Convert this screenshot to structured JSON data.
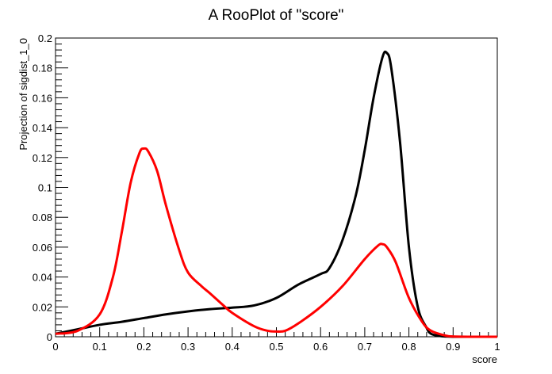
{
  "chart_data": {
    "type": "line",
    "title": "A RooPlot of \"score\"",
    "xlabel": "score",
    "ylabel": "Projection of sigdist_1_0",
    "xlim": [
      0,
      1
    ],
    "ylim": [
      0,
      0.2
    ],
    "grid": false,
    "x_ticks": [
      0,
      0.1,
      0.2,
      0.3,
      0.4,
      0.5,
      0.6,
      0.7,
      0.8,
      0.9,
      1
    ],
    "x_tick_labels": [
      "0",
      "0.1",
      "0.2",
      "0.3",
      "0.4",
      "0.5",
      "0.6",
      "0.7",
      "0.8",
      "0.9",
      "1"
    ],
    "y_ticks": [
      0,
      0.02,
      0.04,
      0.06,
      0.08,
      0.1,
      0.12,
      0.14,
      0.16,
      0.18,
      0.2
    ],
    "y_tick_labels": [
      "0",
      "0.02",
      "0.04",
      "0.06",
      "0.08",
      "0.1",
      "0.12",
      "0.14",
      "0.16",
      "0.18",
      "0.2"
    ],
    "series": [
      {
        "color": "#000000",
        "x": [
          0.0,
          0.05,
          0.1,
          0.15,
          0.2,
          0.25,
          0.3,
          0.35,
          0.4,
          0.45,
          0.5,
          0.55,
          0.6,
          0.62,
          0.65,
          0.68,
          0.7,
          0.72,
          0.74,
          0.75,
          0.76,
          0.78,
          0.8,
          0.82,
          0.84,
          0.85,
          0.87,
          0.9,
          0.95,
          1.0
        ],
        "y": [
          0.002,
          0.005,
          0.008,
          0.01,
          0.0125,
          0.015,
          0.017,
          0.0185,
          0.0195,
          0.021,
          0.026,
          0.035,
          0.042,
          0.046,
          0.065,
          0.095,
          0.125,
          0.16,
          0.187,
          0.19,
          0.18,
          0.13,
          0.06,
          0.02,
          0.006,
          0.002,
          0.0005,
          0.0,
          0.0,
          0.0
        ]
      },
      {
        "color": "#ff0000",
        "x": [
          0.0,
          0.05,
          0.1,
          0.13,
          0.15,
          0.17,
          0.19,
          0.2,
          0.21,
          0.23,
          0.25,
          0.28,
          0.3,
          0.33,
          0.35,
          0.38,
          0.4,
          0.45,
          0.48,
          0.5,
          0.52,
          0.55,
          0.6,
          0.65,
          0.7,
          0.73,
          0.74,
          0.75,
          0.77,
          0.8,
          0.83,
          0.85,
          0.88,
          0.9,
          0.95,
          1.0
        ],
        "y": [
          0.002,
          0.004,
          0.015,
          0.04,
          0.07,
          0.103,
          0.123,
          0.126,
          0.124,
          0.111,
          0.088,
          0.058,
          0.043,
          0.034,
          0.029,
          0.021,
          0.016,
          0.007,
          0.004,
          0.0035,
          0.004,
          0.009,
          0.02,
          0.034,
          0.052,
          0.061,
          0.062,
          0.06,
          0.05,
          0.026,
          0.01,
          0.004,
          0.001,
          0.0002,
          0.0,
          0.0
        ]
      }
    ]
  }
}
